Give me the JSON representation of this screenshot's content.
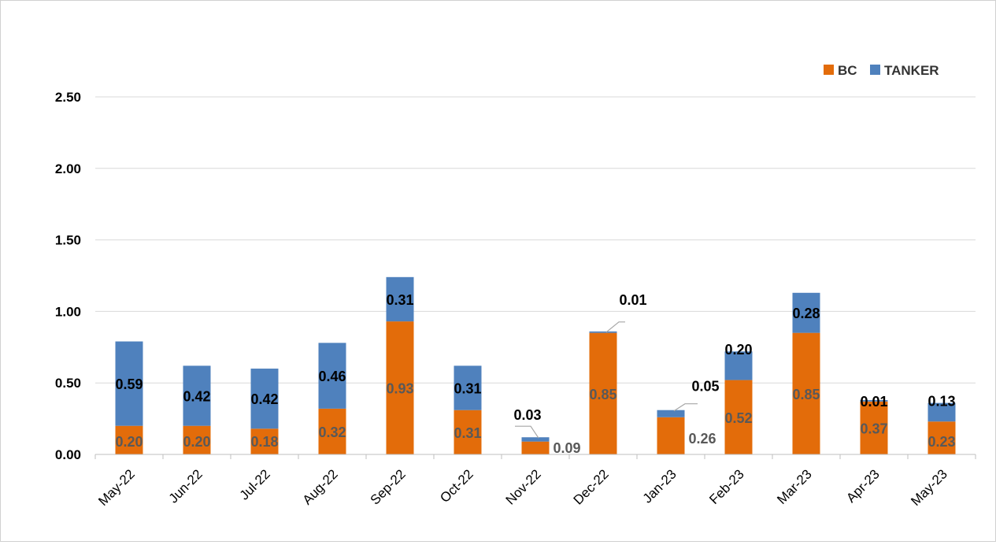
{
  "chart_data": {
    "type": "bar",
    "stacked": true,
    "title": "",
    "xlabel": "",
    "ylabel": "",
    "categories": [
      "May-22",
      "Jun-22",
      "Jul-22",
      "Aug-22",
      "Sep-22",
      "Oct-22",
      "Nov-22",
      "Dec-22",
      "Jan-23",
      "Feb-23",
      "Mar-23",
      "Apr-23",
      "May-23"
    ],
    "series": [
      {
        "name": "BC",
        "color": "#E36C0A",
        "values": [
          0.2,
          0.2,
          0.18,
          0.32,
          0.93,
          0.31,
          0.09,
          0.85,
          0.26,
          0.52,
          0.85,
          0.37,
          0.23
        ]
      },
      {
        "name": "TANKER",
        "color": "#4F81BD",
        "values": [
          0.59,
          0.42,
          0.42,
          0.46,
          0.31,
          0.31,
          0.03,
          0.01,
          0.05,
          0.2,
          0.28,
          0.01,
          0.13
        ]
      }
    ],
    "bc_labels": [
      "0.20",
      "0.20",
      "0.18",
      "0.32",
      "0.93",
      "0.31",
      "0.09",
      "0.85",
      "0.26",
      "0.52",
      "0.85",
      "0.37",
      "0.23"
    ],
    "tanker_labels": [
      "0.59",
      "0.42",
      "0.42",
      "0.46",
      "0.31",
      "0.31",
      "0.03",
      "0.01",
      "0.05",
      "0.20",
      "0.28",
      "0.01",
      "0.13"
    ],
    "ylim": [
      0,
      2.5
    ],
    "yticks": [
      "0.00",
      "0.50",
      "1.00",
      "1.50",
      "2.00",
      "2.50"
    ],
    "ytick_values": [
      0,
      0.5,
      1.0,
      1.5,
      2.0,
      2.5
    ],
    "grid": true,
    "legend_position": "top-right"
  }
}
